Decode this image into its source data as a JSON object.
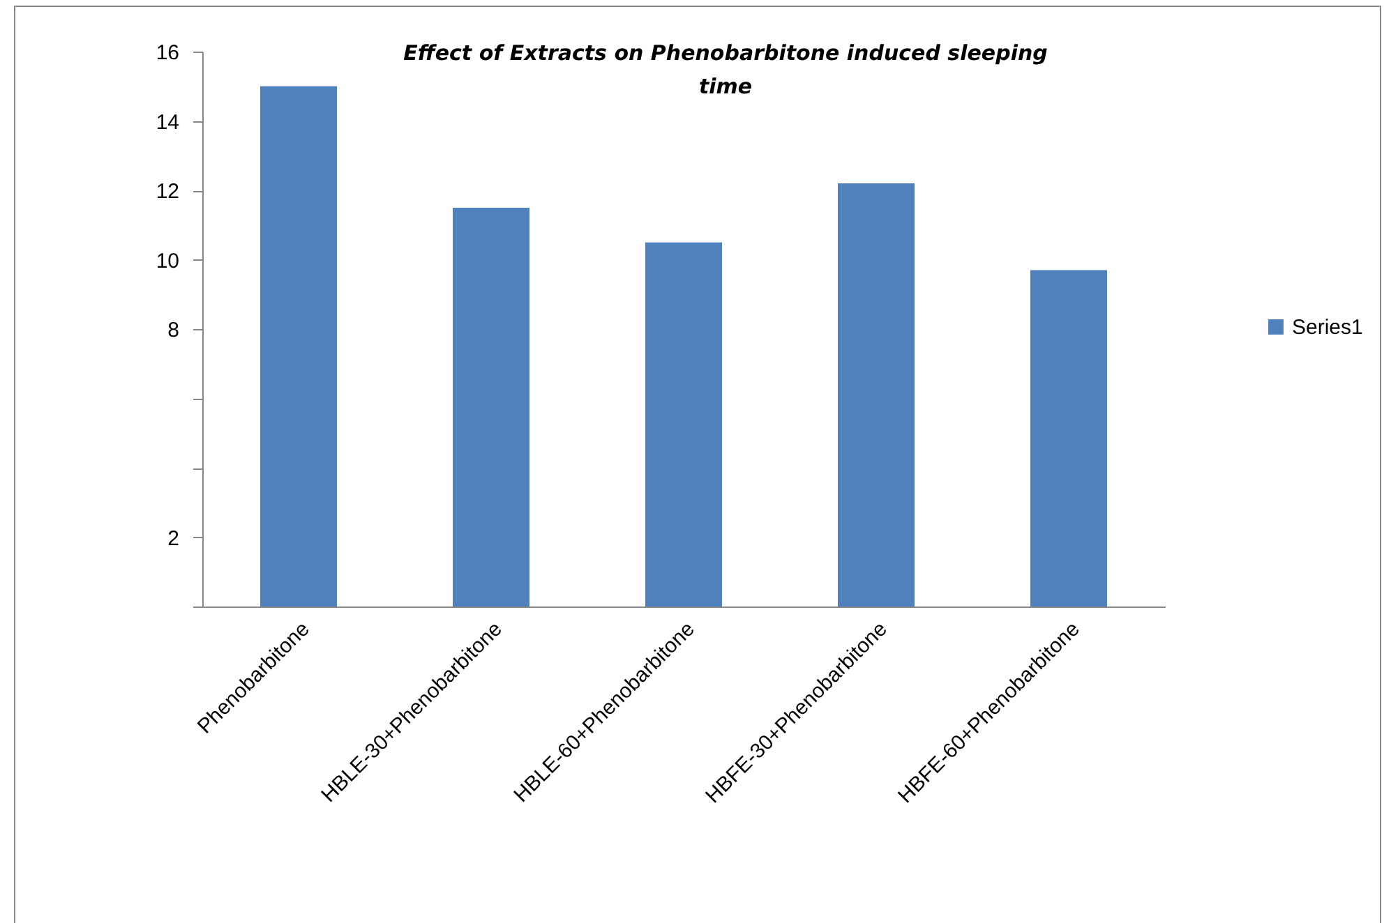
{
  "chart_data": {
    "type": "bar",
    "title": "Effect of Extracts on Phenobarbitone  induced sleeping time",
    "categories": [
      "Phenobarbitone",
      "HBLE-30+Phenobarbitone",
      "HBLE-60+Phenobarbitone",
      "HBFE-30+Phenobarbitone",
      "HBFE-60+Phenobarbitone"
    ],
    "series": [
      {
        "name": "Series1",
        "color": "#4f81bd",
        "values": [
          15.0,
          11.5,
          10.5,
          12.2,
          9.7
        ]
      }
    ],
    "ylim": [
      0,
      16
    ],
    "yticks": [
      16,
      14,
      12,
      10,
      8,
      {
        "value": 6,
        "label": null
      },
      {
        "value": 4,
        "label": null
      },
      2,
      {
        "value": 0,
        "label": null
      }
    ],
    "grid": false,
    "legend": "right"
  }
}
